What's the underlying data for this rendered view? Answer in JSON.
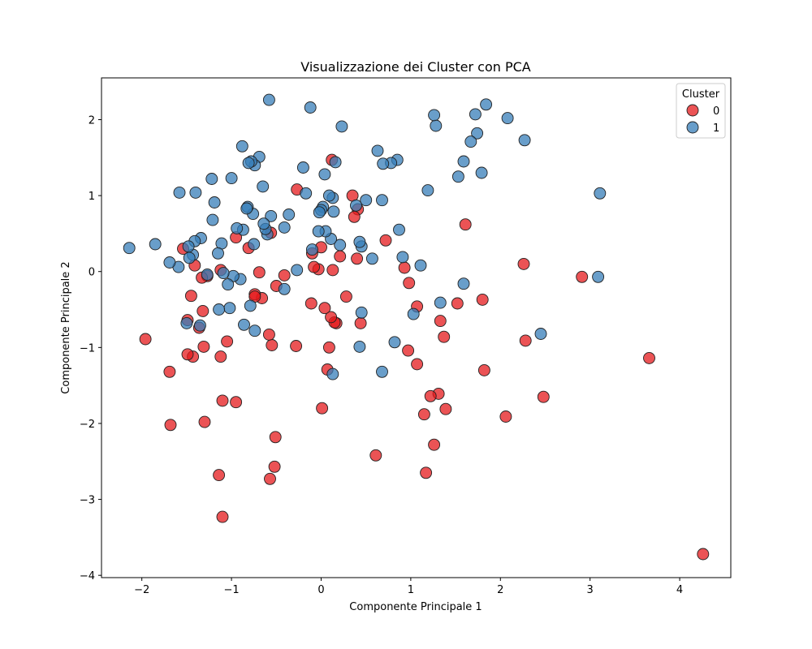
{
  "chart_data": {
    "type": "scatter",
    "title": "Visualizzazione dei Cluster con PCA",
    "xlabel": "Componente Principale 1",
    "ylabel": "Componente Principale 2",
    "xlim": [
      -2.45,
      4.57
    ],
    "ylim": [
      -4.03,
      2.55
    ],
    "xticks": [
      -2,
      -1,
      0,
      1,
      2,
      3,
      4
    ],
    "yticks": [
      -4,
      -3,
      -2,
      -1,
      0,
      1,
      2
    ],
    "grid": false,
    "legend": {
      "title": "Cluster",
      "placement": "top-right"
    },
    "series": [
      {
        "name": "0",
        "color": "#e41a1c",
        "points": [
          [
            4.26,
            -3.72
          ],
          [
            3.66,
            -1.14
          ],
          [
            2.91,
            -0.07
          ],
          [
            2.48,
            -1.65
          ],
          [
            2.28,
            -0.91
          ],
          [
            2.26,
            0.1
          ],
          [
            2.06,
            -1.91
          ],
          [
            1.82,
            -1.3
          ],
          [
            1.8,
            -0.37
          ],
          [
            1.61,
            0.62
          ],
          [
            1.52,
            -0.42
          ],
          [
            1.39,
            -1.81
          ],
          [
            1.37,
            -0.86
          ],
          [
            1.33,
            -0.65
          ],
          [
            1.31,
            -1.61
          ],
          [
            1.26,
            -2.28
          ],
          [
            1.22,
            -1.64
          ],
          [
            1.17,
            -2.65
          ],
          [
            1.15,
            -1.88
          ],
          [
            1.07,
            -1.22
          ],
          [
            1.07,
            -0.46
          ],
          [
            0.98,
            -0.15
          ],
          [
            0.97,
            -1.04
          ],
          [
            0.93,
            0.05
          ],
          [
            0.72,
            0.41
          ],
          [
            0.61,
            -2.42
          ],
          [
            0.44,
            -0.68
          ],
          [
            0.41,
            0.82
          ],
          [
            0.4,
            0.17
          ],
          [
            0.37,
            0.72
          ],
          [
            0.35,
            1.0
          ],
          [
            0.28,
            -0.33
          ],
          [
            0.21,
            0.2
          ],
          [
            0.17,
            -0.68
          ],
          [
            0.15,
            -0.67
          ],
          [
            0.13,
            0.02
          ],
          [
            0.12,
            1.47
          ],
          [
            0.11,
            -0.6
          ],
          [
            0.09,
            -1.0
          ],
          [
            0.07,
            -1.29
          ],
          [
            0.04,
            -0.48
          ],
          [
            0.01,
            -1.8
          ],
          [
            0.0,
            0.32
          ],
          [
            -0.03,
            0.03
          ],
          [
            -0.08,
            0.06
          ],
          [
            -0.1,
            0.24
          ],
          [
            -0.11,
            -0.42
          ],
          [
            -0.27,
            1.08
          ],
          [
            -0.28,
            -0.98
          ],
          [
            -0.41,
            -0.05
          ],
          [
            -0.5,
            -0.19
          ],
          [
            -0.51,
            -2.18
          ],
          [
            -0.52,
            -2.57
          ],
          [
            -0.55,
            -0.97
          ],
          [
            -0.56,
            0.51
          ],
          [
            -0.57,
            -2.73
          ],
          [
            -0.58,
            -0.83
          ],
          [
            -0.66,
            -0.35
          ],
          [
            -0.69,
            -0.01
          ],
          [
            -0.74,
            -0.3
          ],
          [
            -0.74,
            -0.33
          ],
          [
            -0.81,
            0.31
          ],
          [
            -0.95,
            -1.72
          ],
          [
            -0.95,
            0.45
          ],
          [
            -1.05,
            -0.92
          ],
          [
            -1.1,
            -3.23
          ],
          [
            -1.1,
            -1.7
          ],
          [
            -1.12,
            -1.12
          ],
          [
            -1.12,
            0.02
          ],
          [
            -1.14,
            -2.68
          ],
          [
            -1.27,
            -0.06
          ],
          [
            -1.3,
            -1.98
          ],
          [
            -1.31,
            -0.99
          ],
          [
            -1.32,
            -0.52
          ],
          [
            -1.33,
            -0.08
          ],
          [
            -1.36,
            -0.74
          ],
          [
            -1.41,
            0.08
          ],
          [
            -1.43,
            -1.12
          ],
          [
            -1.45,
            -0.32
          ],
          [
            -1.49,
            -1.09
          ],
          [
            -1.49,
            -0.64
          ],
          [
            -1.54,
            0.3
          ],
          [
            -1.68,
            -2.02
          ],
          [
            -1.69,
            -1.32
          ],
          [
            -1.96,
            -0.89
          ]
        ]
      },
      {
        "name": "1",
        "color": "#377eb8",
        "points": [
          [
            3.11,
            1.03
          ],
          [
            3.09,
            -0.07
          ],
          [
            2.45,
            -0.82
          ],
          [
            2.27,
            1.73
          ],
          [
            2.08,
            2.02
          ],
          [
            1.84,
            2.2
          ],
          [
            1.79,
            1.3
          ],
          [
            1.74,
            1.82
          ],
          [
            1.72,
            2.07
          ],
          [
            1.67,
            1.71
          ],
          [
            1.59,
            1.45
          ],
          [
            1.59,
            -0.16
          ],
          [
            1.53,
            1.25
          ],
          [
            1.33,
            -0.41
          ],
          [
            1.28,
            1.92
          ],
          [
            1.26,
            2.06
          ],
          [
            1.19,
            1.07
          ],
          [
            1.11,
            0.08
          ],
          [
            1.03,
            -0.56
          ],
          [
            0.91,
            0.19
          ],
          [
            0.87,
            0.55
          ],
          [
            0.85,
            1.47
          ],
          [
            0.82,
            -0.93
          ],
          [
            0.78,
            1.43
          ],
          [
            0.69,
            1.42
          ],
          [
            0.68,
            0.94
          ],
          [
            0.68,
            -1.32
          ],
          [
            0.63,
            1.59
          ],
          [
            0.57,
            0.17
          ],
          [
            0.5,
            0.94
          ],
          [
            0.45,
            -0.54
          ],
          [
            0.45,
            0.33
          ],
          [
            0.43,
            0.39
          ],
          [
            0.43,
            -0.99
          ],
          [
            0.39,
            0.87
          ],
          [
            0.23,
            1.91
          ],
          [
            0.21,
            0.35
          ],
          [
            0.16,
            1.44
          ],
          [
            0.14,
            0.79
          ],
          [
            0.13,
            -1.35
          ],
          [
            0.13,
            0.97
          ],
          [
            0.11,
            0.43
          ],
          [
            0.09,
            1.0
          ],
          [
            0.05,
            0.53
          ],
          [
            0.04,
            1.28
          ],
          [
            0.02,
            0.85
          ],
          [
            0.0,
            0.81
          ],
          [
            -0.02,
            0.78
          ],
          [
            -0.03,
            0.53
          ],
          [
            -0.1,
            0.29
          ],
          [
            -0.12,
            2.16
          ],
          [
            -0.17,
            1.03
          ],
          [
            -0.2,
            1.37
          ],
          [
            -0.27,
            0.02
          ],
          [
            -0.36,
            0.75
          ],
          [
            -0.41,
            -0.23
          ],
          [
            -0.41,
            0.58
          ],
          [
            -0.56,
            0.73
          ],
          [
            -0.58,
            2.26
          ],
          [
            -0.6,
            0.49
          ],
          [
            -0.62,
            0.56
          ],
          [
            -0.64,
            0.63
          ],
          [
            -0.65,
            1.12
          ],
          [
            -0.69,
            1.51
          ],
          [
            -0.74,
            -0.78
          ],
          [
            -0.74,
            1.4
          ],
          [
            -0.75,
            0.36
          ],
          [
            -0.76,
            0.76
          ],
          [
            -0.78,
            1.45
          ],
          [
            -0.79,
            -0.45
          ],
          [
            -0.81,
            1.43
          ],
          [
            -0.82,
            0.85
          ],
          [
            -0.83,
            0.83
          ],
          [
            -0.86,
            -0.7
          ],
          [
            -0.87,
            0.55
          ],
          [
            -0.88,
            1.65
          ],
          [
            -0.9,
            -0.1
          ],
          [
            -0.94,
            0.57
          ],
          [
            -0.98,
            -0.06
          ],
          [
            -1.0,
            1.23
          ],
          [
            -1.02,
            -0.48
          ],
          [
            -1.04,
            -0.17
          ],
          [
            -1.09,
            -0.02
          ],
          [
            -1.11,
            0.37
          ],
          [
            -1.14,
            -0.5
          ],
          [
            -1.15,
            0.24
          ],
          [
            -1.19,
            0.91
          ],
          [
            -1.21,
            0.68
          ],
          [
            -1.22,
            1.22
          ],
          [
            -1.27,
            -0.04
          ],
          [
            -1.34,
            0.44
          ],
          [
            -1.35,
            -0.71
          ],
          [
            -1.4,
            1.04
          ],
          [
            -1.41,
            0.4
          ],
          [
            -1.43,
            0.22
          ],
          [
            -1.47,
            0.18
          ],
          [
            -1.48,
            0.33
          ],
          [
            -1.5,
            -0.68
          ],
          [
            -1.58,
            1.04
          ],
          [
            -1.59,
            0.06
          ],
          [
            -1.69,
            0.12
          ],
          [
            -1.85,
            0.36
          ],
          [
            -2.14,
            0.31
          ]
        ]
      }
    ]
  }
}
